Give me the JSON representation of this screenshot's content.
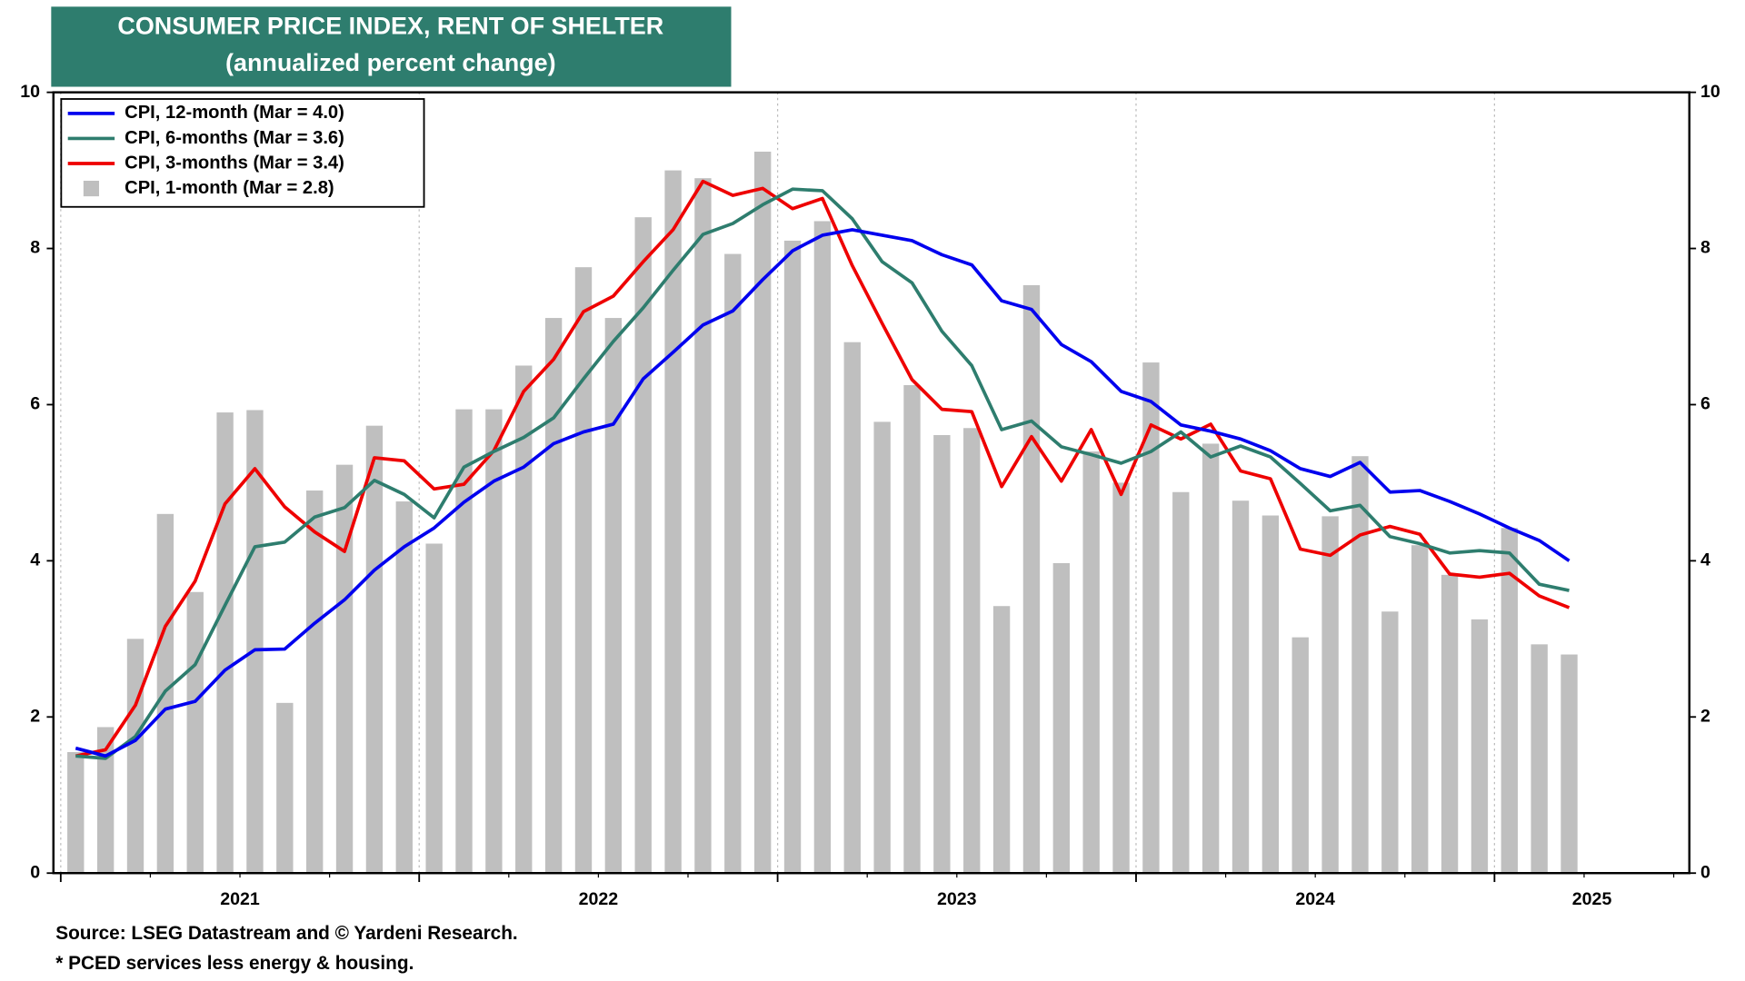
{
  "chart_data": {
    "type": "combo",
    "title": "CONSUMER PRICE INDEX, RENT OF SHELTER",
    "subtitle": "(annualized percent change)",
    "categories": [
      "2021",
      null,
      null,
      null,
      null,
      null,
      null,
      null,
      null,
      null,
      null,
      null,
      "2022",
      null,
      null,
      null,
      null,
      null,
      null,
      null,
      null,
      null,
      null,
      null,
      "2023",
      null,
      null,
      null,
      null,
      null,
      null,
      null,
      null,
      null,
      null,
      null,
      "2024",
      null,
      null,
      null,
      null,
      null,
      null,
      null,
      null,
      null,
      null,
      null,
      "2025",
      null,
      null
    ],
    "ylim": [
      0,
      10
    ],
    "yticks": [
      0,
      2,
      4,
      6,
      8,
      10
    ],
    "y2lim": [
      0,
      10
    ],
    "y2ticks": [
      0,
      2,
      4,
      6,
      8,
      10
    ],
    "legend": "upper left",
    "series": [
      {
        "name": "CPI, 12-month (Mar = 4.0)",
        "type": "line",
        "color": "#0000ee",
        "values": [
          1.6,
          1.5,
          1.7,
          2.1,
          2.2,
          2.6,
          2.86,
          2.87,
          3.2,
          3.5,
          3.88,
          4.18,
          4.42,
          4.75,
          5.02,
          5.2,
          5.5,
          5.65,
          5.75,
          6.33,
          6.67,
          7.02,
          7.2,
          7.6,
          7.97,
          8.17,
          8.24,
          8.17,
          8.1,
          7.92,
          7.79,
          7.33,
          7.22,
          6.77,
          6.55,
          6.17,
          6.04,
          5.74,
          5.66,
          5.56,
          5.41,
          5.18,
          5.08,
          5.26,
          4.88,
          4.9,
          4.76,
          4.6,
          4.42,
          4.26,
          4.0
        ]
      },
      {
        "name": "CPI, 6-months (Mar = 3.6)",
        "type": "line",
        "color": "#2e7d6e",
        "values": [
          1.5,
          1.47,
          1.75,
          2.33,
          2.67,
          3.43,
          4.18,
          4.24,
          4.56,
          4.68,
          5.03,
          4.85,
          4.55,
          5.2,
          5.4,
          5.58,
          5.83,
          6.33,
          6.81,
          7.24,
          7.72,
          8.18,
          8.32,
          8.56,
          8.76,
          8.74,
          8.38,
          7.83,
          7.56,
          6.94,
          6.5,
          5.68,
          5.79,
          5.46,
          5.36,
          5.25,
          5.4,
          5.65,
          5.33,
          5.47,
          5.33,
          4.99,
          4.64,
          4.71,
          4.31,
          4.22,
          4.1,
          4.13,
          4.1,
          3.7,
          3.62
        ]
      },
      {
        "name": "CPI, 3-months (Mar = 3.4)",
        "type": "line",
        "color": "#ee0000",
        "values": [
          1.5,
          1.58,
          2.15,
          3.16,
          3.74,
          4.73,
          5.18,
          4.69,
          4.37,
          4.12,
          5.32,
          5.28,
          4.92,
          4.98,
          5.41,
          6.17,
          6.58,
          7.19,
          7.39,
          7.83,
          8.24,
          8.86,
          8.68,
          8.77,
          8.51,
          8.64,
          7.78,
          7.04,
          6.32,
          5.94,
          5.91,
          4.95,
          5.59,
          5.02,
          5.68,
          4.85,
          5.74,
          5.56,
          5.75,
          5.15,
          5.05,
          4.15,
          4.07,
          4.33,
          4.44,
          4.34,
          3.83,
          3.79,
          3.84,
          3.55,
          3.4
        ]
      },
      {
        "name": "CPI, 1-month (Mar = 2.8)",
        "type": "bar",
        "color": "#bfbfbf",
        "values": [
          1.55,
          1.87,
          3.0,
          4.6,
          3.6,
          5.9,
          5.93,
          2.18,
          4.9,
          5.23,
          5.73,
          4.76,
          4.22,
          5.94,
          5.94,
          6.5,
          7.11,
          7.76,
          7.11,
          8.4,
          9.0,
          8.9,
          7.93,
          9.24,
          8.1,
          8.35,
          6.8,
          5.78,
          6.25,
          5.61,
          5.7,
          3.42,
          7.53,
          3.97,
          5.4,
          5.0,
          6.54,
          4.88,
          5.5,
          4.77,
          4.58,
          3.02,
          4.57,
          5.34,
          3.35,
          4.2,
          3.82,
          3.25,
          4.42,
          2.93,
          2.8
        ]
      }
    ],
    "notes": [
      "Source: LSEG Datastream and © Yardeni Research.",
      "* PCED services less energy & housing."
    ]
  }
}
